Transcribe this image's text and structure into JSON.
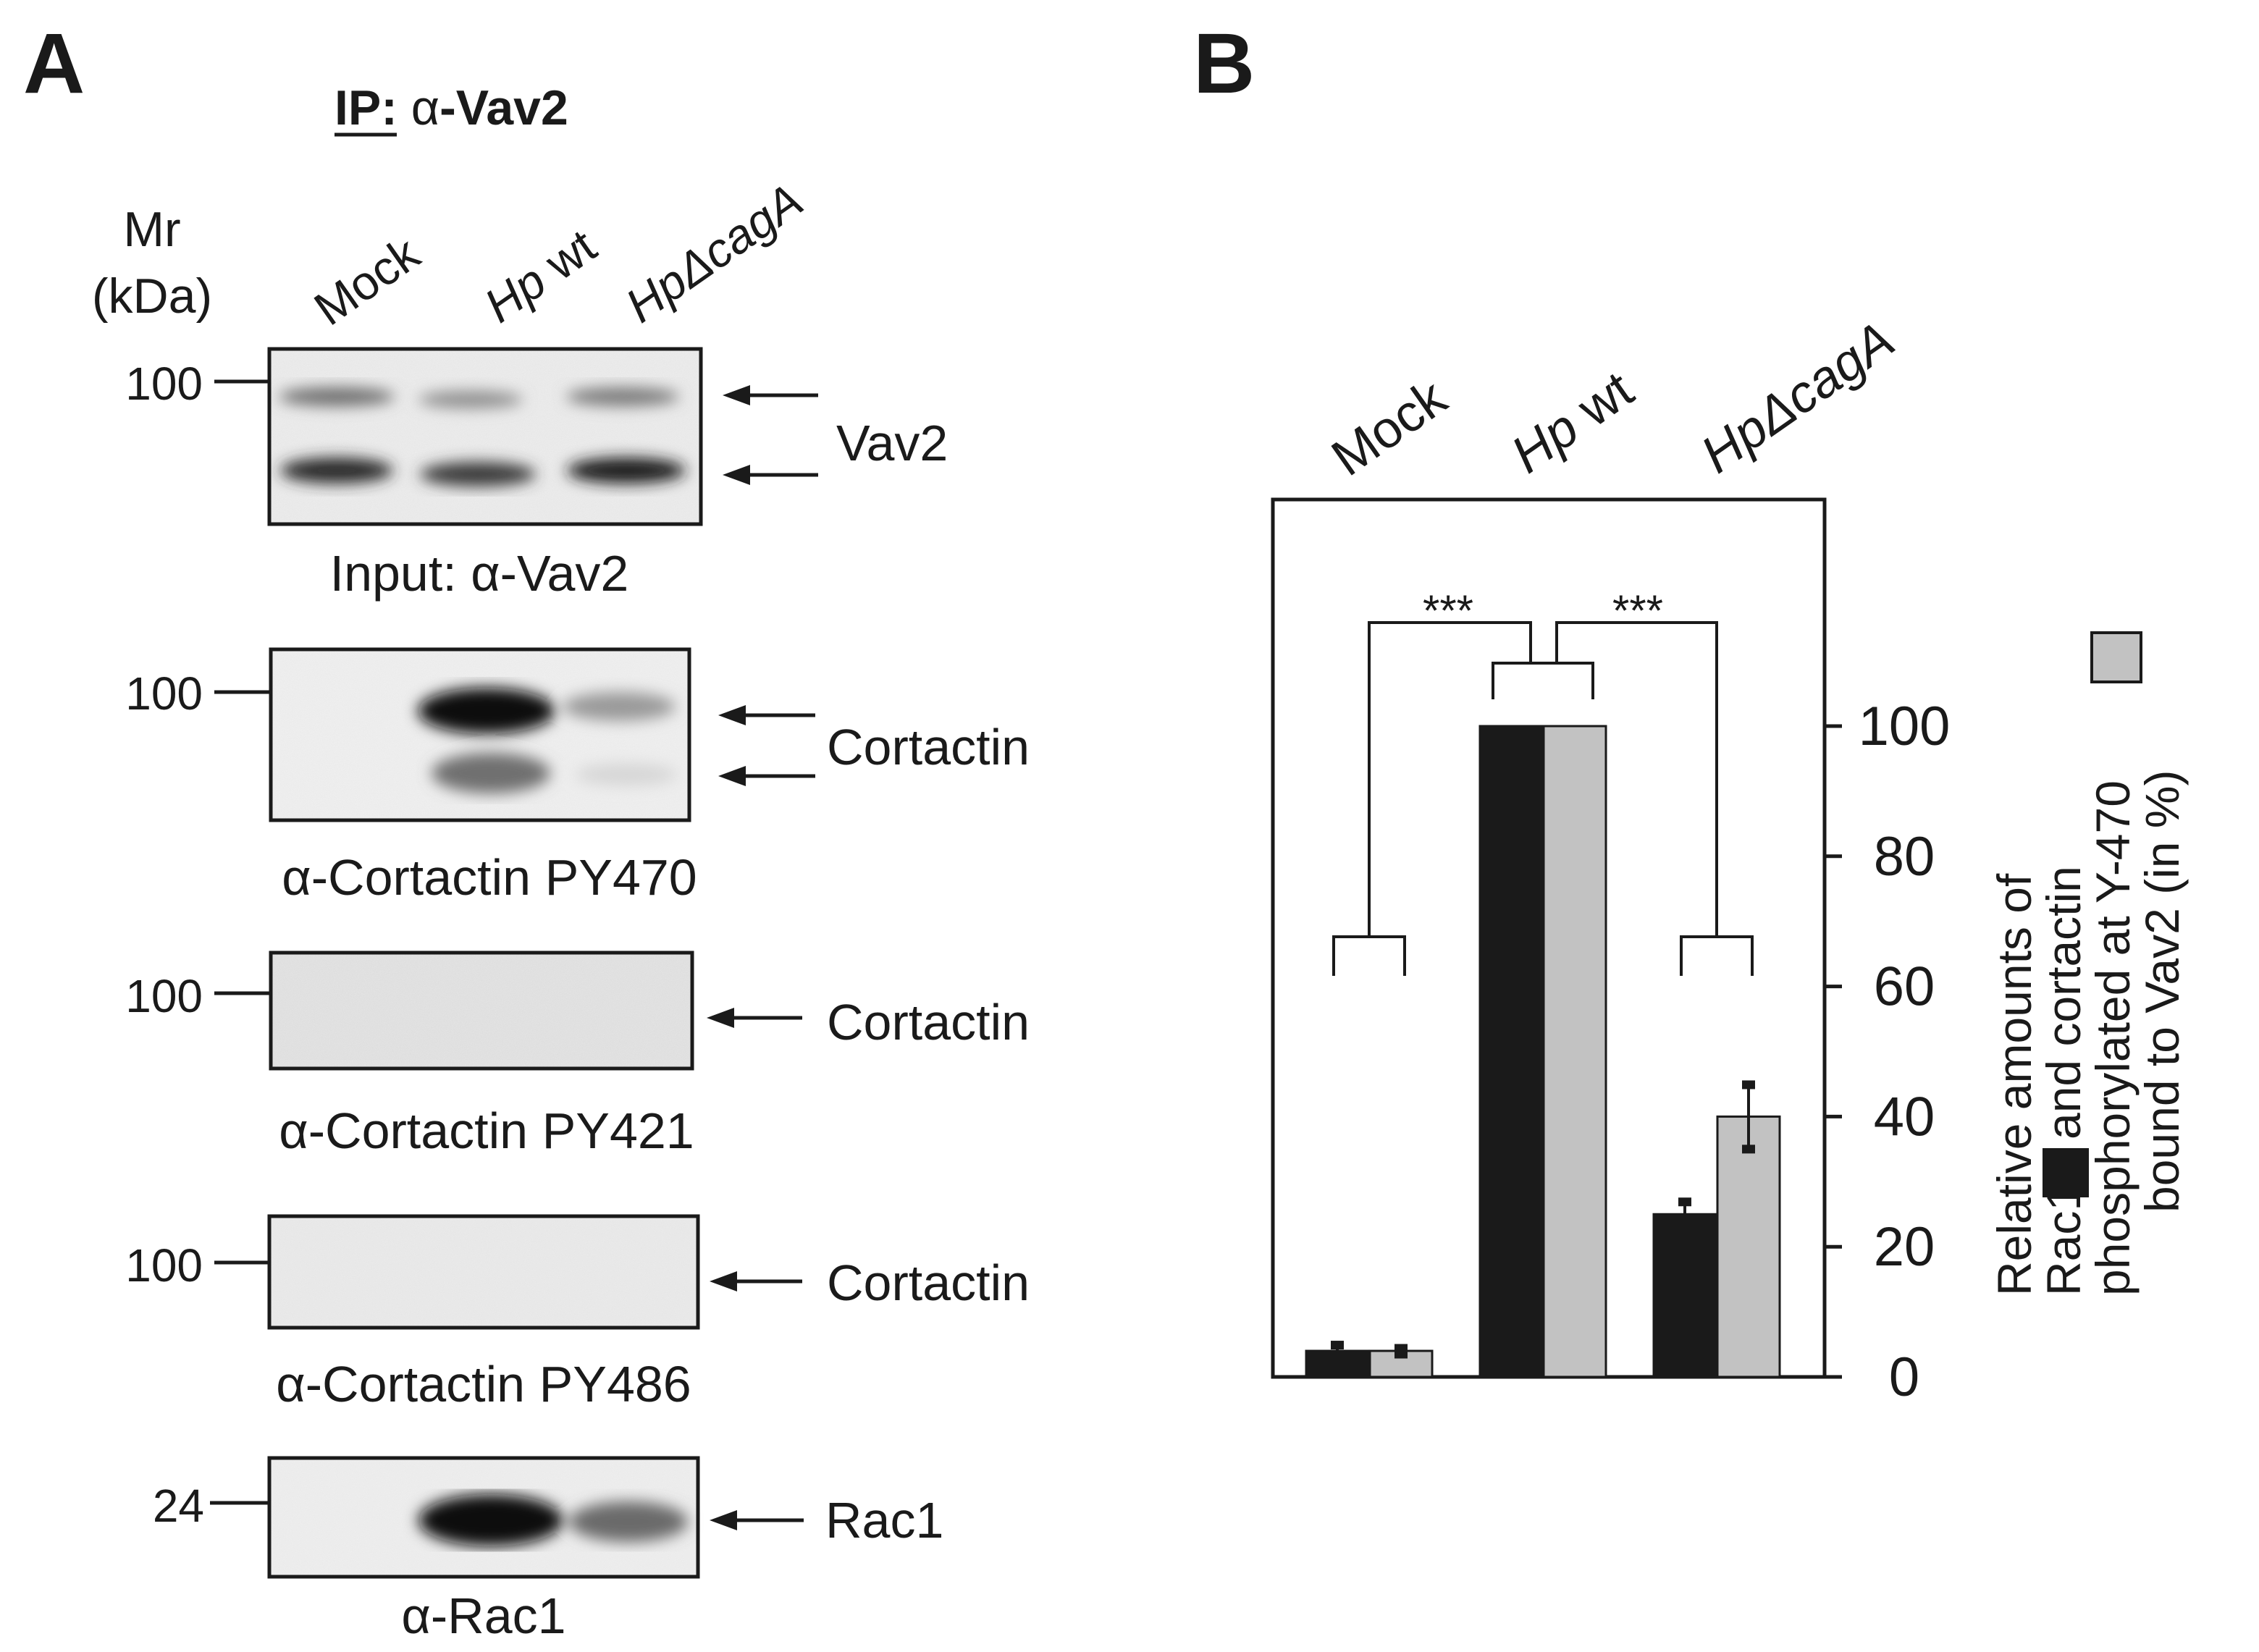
{
  "panel_a": {
    "letter": "A",
    "ip_label": {
      "prefix": "IP",
      "colon": ": ",
      "greek": "α",
      "suffix": "-Vav2"
    },
    "mr_label": {
      "line1": "Mr",
      "line2": "(kDa)"
    },
    "lanes": [
      {
        "prefix": "Mock",
        "italic_part": ""
      },
      {
        "prefix": "",
        "italic_part": "Hp",
        "plain_suffix": " wt"
      },
      {
        "prefix": "",
        "italic_part": "HpΔcagA",
        "plain_suffix": ""
      }
    ],
    "blots": [
      {
        "marker": "100",
        "right_label": "Vav2",
        "caption": "Input: α-Vav2"
      },
      {
        "marker": "100",
        "right_label": "Cortactin",
        "caption": "α-Cortactin PY470"
      },
      {
        "marker": "100",
        "right_label": "Cortactin",
        "caption": "α-Cortactin PY421"
      },
      {
        "marker": "100",
        "right_label": "Cortactin",
        "caption": "α-Cortactin PY486"
      },
      {
        "marker": "24",
        "right_label": "Rac1",
        "caption": "α-Rac1"
      }
    ]
  },
  "panel_b": {
    "letter": "B",
    "ylabel_lines": [
      "Relative amounts of",
      "Rac1",
      "and cortactin",
      "phosphorylated at Y-470",
      "bound to Vav2 (in %)"
    ],
    "significance": [
      "***",
      "***"
    ],
    "colors": {
      "rac1": "#1a1a1a",
      "cortactin": "#c2c2c2"
    }
  },
  "chart_data": {
    "type": "bar",
    "categories": [
      "Mock",
      "Hp wt",
      "HpΔcagA"
    ],
    "series": [
      {
        "name": "Rac1",
        "values": [
          4,
          100,
          25
        ],
        "errors": [
          1,
          0,
          2
        ]
      },
      {
        "name": "cortactin phosphorylated at Y-470",
        "values": [
          4,
          100,
          40
        ],
        "errors": [
          0.5,
          0,
          5
        ]
      }
    ],
    "ylim": [
      0,
      100
    ],
    "yticks": [
      "0",
      "20",
      "40",
      "60",
      "80",
      "100"
    ],
    "ytick_values": [
      0,
      20,
      40,
      60,
      80,
      100
    ],
    "yaxis_side": "right",
    "grid": false,
    "legend": "inline in y-axis label"
  }
}
